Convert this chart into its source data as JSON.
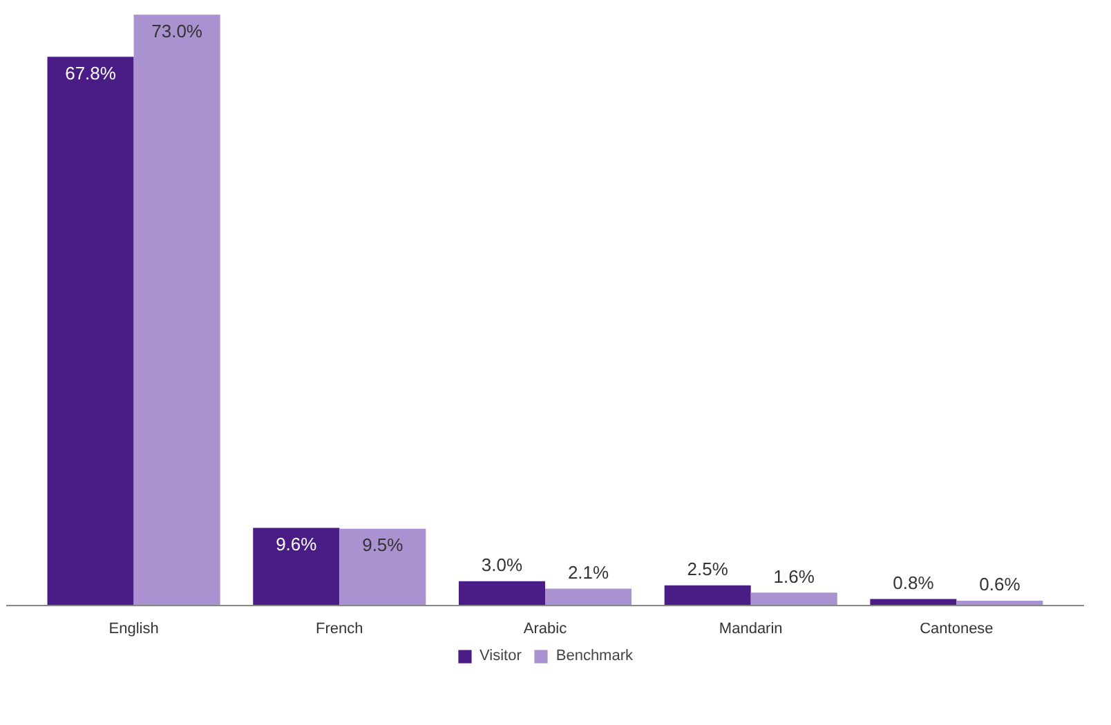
{
  "chart_data": {
    "type": "bar",
    "categories": [
      "English",
      "French",
      "Arabic",
      "Mandarin",
      "Cantonese"
    ],
    "series": [
      {
        "name": "Visitor",
        "color": "#4a1d86",
        "values": [
          67.8,
          9.6,
          3.0,
          2.5,
          0.8
        ],
        "value_labels": [
          "67.8%",
          "9.6%",
          "3.0%",
          "2.5%",
          "0.8%"
        ]
      },
      {
        "name": "Benchmark",
        "color": "#a992cf",
        "values": [
          73.0,
          9.5,
          2.1,
          1.6,
          0.6
        ],
        "value_labels": [
          "73.0%",
          "9.5%",
          "2.1%",
          "1.6%",
          "0.6%"
        ]
      }
    ],
    "legend": "bottom"
  }
}
